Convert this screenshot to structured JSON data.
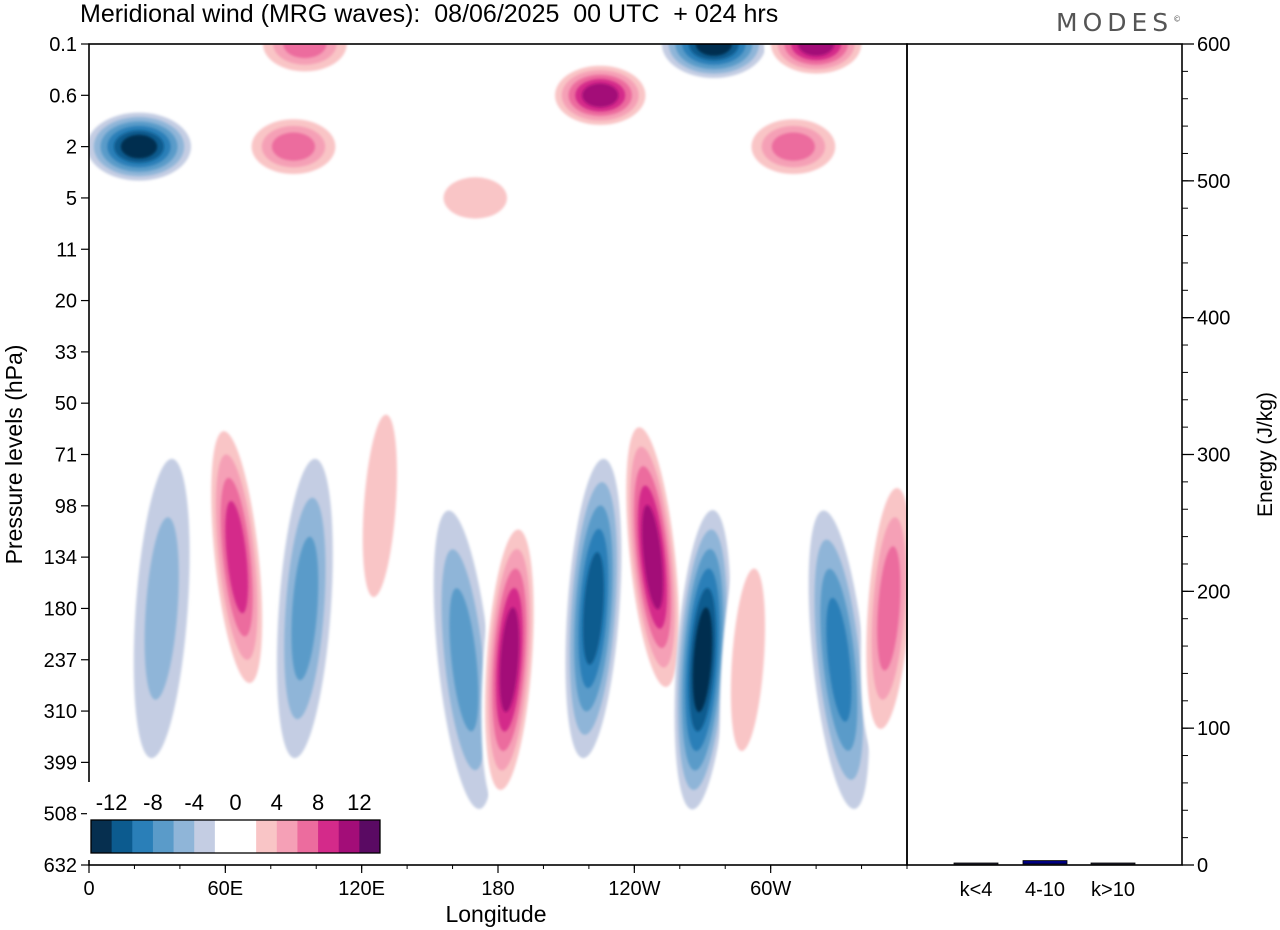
{
  "header": {
    "title": "Meridional wind (MRG waves):  08/06/2025  00 UTC  + 024 hrs",
    "logo": "MODES"
  },
  "chart_data": [
    {
      "type": "heatmap",
      "title": "Meridional wind (MRG waves):  08/06/2025  00 UTC  + 024 hrs",
      "xlabel": "Longitude",
      "ylabel": "Pressure levels (hPa)",
      "x_ticks": [
        "0",
        "60E",
        "120E",
        "180",
        "120W",
        "60W"
      ],
      "x_range": [
        0,
        360
      ],
      "y_ticks": [
        "0.1",
        "0.6",
        "2",
        "5",
        "11",
        "20",
        "33",
        "50",
        "71",
        "98",
        "134",
        "180",
        "237",
        "310",
        "399",
        "508",
        "632"
      ],
      "colorbar": {
        "labels": [
          "-12",
          "-8",
          "-4",
          "0",
          "4",
          "8",
          "12"
        ],
        "levels": [
          -14,
          -12,
          -10,
          -8,
          -6,
          -4,
          -2,
          2,
          4,
          6,
          8,
          10,
          12,
          14
        ],
        "colors": [
          "#062f4f",
          "#0c5b8f",
          "#2a7fb8",
          "#5a9bc9",
          "#8fb5d8",
          "#c4cde3",
          "#ffffff",
          "#ffffff",
          "#f9c5c6",
          "#f5a0b6",
          "#ec6c9e",
          "#d42a8a",
          "#a30d78",
          "#5a0a63"
        ]
      },
      "features": [
        {
          "lon": 22,
          "level": "2",
          "value": -13
        },
        {
          "lon": 95,
          "level": "0.1",
          "value": 10
        },
        {
          "lon": 90,
          "level": "2",
          "value": 9
        },
        {
          "lon": 170,
          "level": "5",
          "value": 5
        },
        {
          "lon": 225,
          "level": "0.6",
          "value": 13
        },
        {
          "lon": 275,
          "level": "0.1",
          "value": -14
        },
        {
          "lon": 320,
          "level": "0.1",
          "value": 13
        },
        {
          "lon": 310,
          "level": "2",
          "value": 9
        },
        {
          "lon": 32,
          "level": "180",
          "value": -6
        },
        {
          "lon": 65,
          "level": "134",
          "value": 11
        },
        {
          "lon": 95,
          "level": "180",
          "value": -8
        },
        {
          "lon": 128,
          "level": "98",
          "value": 5
        },
        {
          "lon": 165,
          "level": "237",
          "value": -7
        },
        {
          "lon": 185,
          "level": "237",
          "value": 13
        },
        {
          "lon": 222,
          "level": "180",
          "value": -11
        },
        {
          "lon": 248,
          "level": "134",
          "value": 13
        },
        {
          "lon": 270,
          "level": "237",
          "value": -14
        },
        {
          "lon": 290,
          "level": "237",
          "value": 6
        },
        {
          "lon": 330,
          "level": "237",
          "value": -9
        },
        {
          "lon": 352,
          "level": "180",
          "value": 9
        }
      ]
    },
    {
      "type": "bar",
      "ylabel": "Energy (J/kg)",
      "categories": [
        "k<4",
        "4-10",
        "k>10"
      ],
      "values": [
        0.5,
        2.5,
        0.3
      ],
      "ylim": [
        0,
        600
      ],
      "y_ticks": [
        "0",
        "100",
        "200",
        "300",
        "400",
        "500",
        "600"
      ],
      "bar_color": "#000080"
    }
  ]
}
